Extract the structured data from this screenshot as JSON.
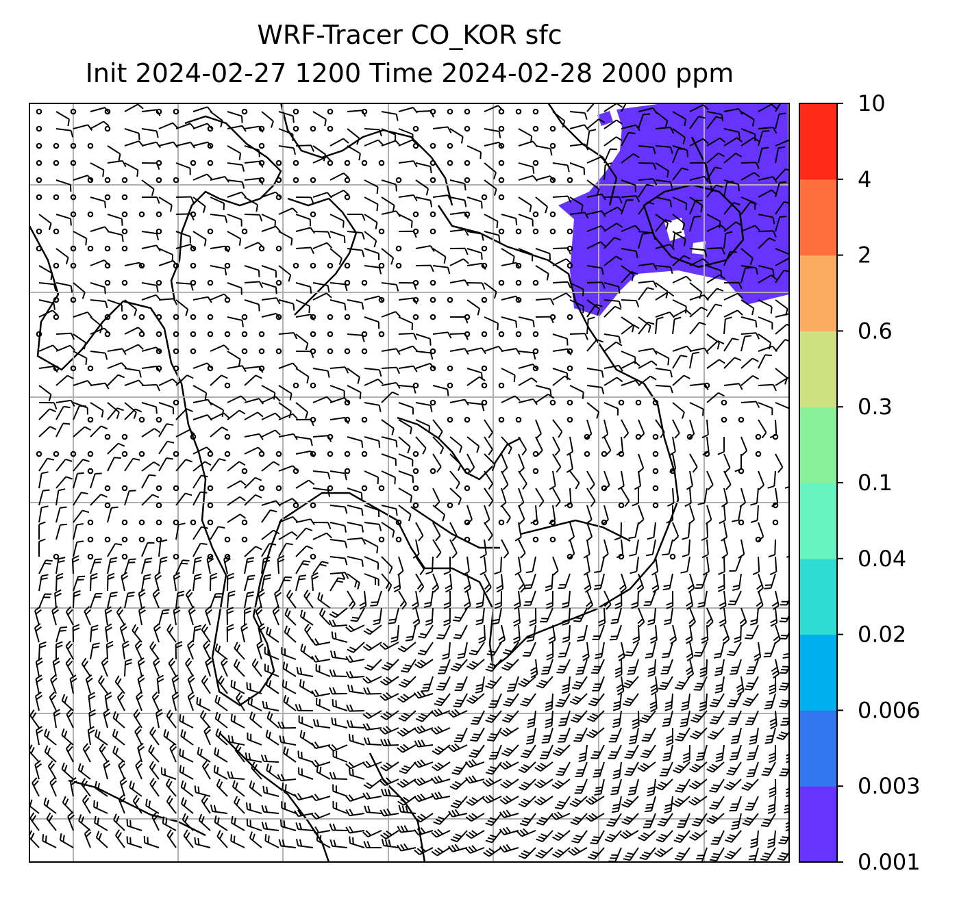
{
  "chart_data": {
    "type": "heatmap",
    "title": "WRF-Tracer CO_KOR sfc",
    "subtitle": "Init 2024-02-27 1200 Time 2024-02-28 2000 ppm",
    "colorbar": {
      "levels": [
        "0.001",
        "0.003",
        "0.006",
        "0.02",
        "0.04",
        "0.1",
        "0.3",
        "0.6",
        "2",
        "4",
        "10"
      ],
      "colors": [
        "#6633ff",
        "#3377ee",
        "#00b0ee",
        "#2edcd2",
        "#66f4c0",
        "#88f098",
        "#cfe080",
        "#fcac60",
        "#ff6e3c",
        "#ff2a18"
      ]
    },
    "field_color": "#6633ff",
    "gridlines": true,
    "overlay": "wind barbs",
    "coastlines": true
  }
}
